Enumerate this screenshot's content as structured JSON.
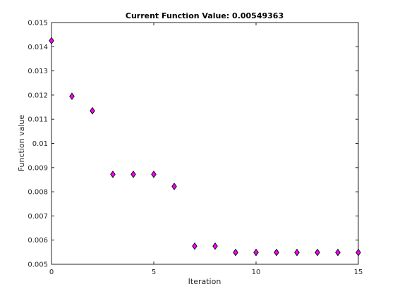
{
  "chart_data": {
    "type": "scatter",
    "title": "Current Function Value: 0.00549363",
    "xlabel": "Iteration",
    "ylabel": "Function value",
    "xlim": [
      0,
      15
    ],
    "ylim": [
      0.005,
      0.015
    ],
    "xticks": [
      0,
      5,
      10,
      15
    ],
    "xtick_labels": [
      "0",
      "5",
      "10",
      "15"
    ],
    "yticks": [
      0.005,
      0.006,
      0.007,
      0.008,
      0.009,
      0.01,
      0.011,
      0.012,
      0.013,
      0.014,
      0.015
    ],
    "ytick_labels": [
      "0.005",
      "0.006",
      "0.007",
      "0.008",
      "0.009",
      "0.01",
      "0.011",
      "0.012",
      "0.013",
      "0.014",
      "0.015"
    ],
    "grid": false,
    "marker": "diamond",
    "marker_color": "#ff00ff",
    "marker_edge_color": "#000000",
    "points": [
      {
        "x": 0,
        "y": 0.01425
      },
      {
        "x": 1,
        "y": 0.01195
      },
      {
        "x": 2,
        "y": 0.01135
      },
      {
        "x": 3,
        "y": 0.00872
      },
      {
        "x": 4,
        "y": 0.00872
      },
      {
        "x": 5,
        "y": 0.00872
      },
      {
        "x": 6,
        "y": 0.00822
      },
      {
        "x": 7,
        "y": 0.00575
      },
      {
        "x": 8,
        "y": 0.00575
      },
      {
        "x": 9,
        "y": 0.00549
      },
      {
        "x": 10,
        "y": 0.00549
      },
      {
        "x": 11,
        "y": 0.00549
      },
      {
        "x": 12,
        "y": 0.00549
      },
      {
        "x": 13,
        "y": 0.00549
      },
      {
        "x": 14,
        "y": 0.00549
      },
      {
        "x": 15,
        "y": 0.00549
      }
    ]
  }
}
